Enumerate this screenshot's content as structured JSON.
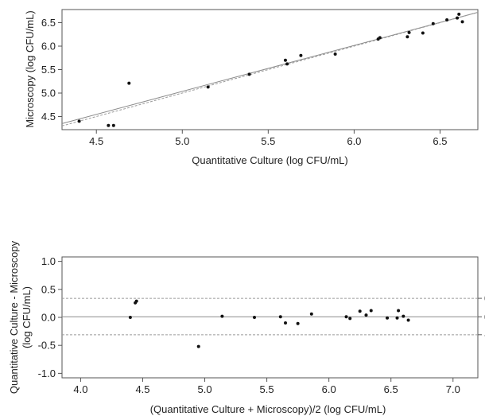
{
  "chart_data": [
    {
      "type": "scatter",
      "xlabel": "Quantitative Culture (log CFU/mL)",
      "ylabel": "Microscopy (log CFU/mL)",
      "xlim": [
        4.3,
        6.72
      ],
      "ylim": [
        4.22,
        6.78
      ],
      "xticks": [
        4.5,
        5.0,
        5.5,
        6.0,
        6.5
      ],
      "xtick_labels": [
        "4.5",
        "5.0",
        "5.5",
        "6.0",
        "6.5"
      ],
      "yticks": [
        4.5,
        5.0,
        5.5,
        6.0,
        6.5
      ],
      "ytick_labels": [
        "4.5",
        "5.0",
        "5.5",
        "6.0",
        "6.5"
      ],
      "grid": false,
      "points": [
        {
          "x": 4.4,
          "y": 4.4
        },
        {
          "x": 4.57,
          "y": 4.31
        },
        {
          "x": 4.6,
          "y": 4.31
        },
        {
          "x": 4.69,
          "y": 5.21
        },
        {
          "x": 5.15,
          "y": 5.13
        },
        {
          "x": 5.39,
          "y": 5.4
        },
        {
          "x": 5.6,
          "y": 5.7
        },
        {
          "x": 5.61,
          "y": 5.62
        },
        {
          "x": 5.69,
          "y": 5.8
        },
        {
          "x": 5.89,
          "y": 5.83
        },
        {
          "x": 6.14,
          "y": 6.15
        },
        {
          "x": 6.15,
          "y": 6.18
        },
        {
          "x": 6.31,
          "y": 6.2
        },
        {
          "x": 6.32,
          "y": 6.29
        },
        {
          "x": 6.4,
          "y": 6.28
        },
        {
          "x": 6.46,
          "y": 6.48
        },
        {
          "x": 6.54,
          "y": 6.56
        },
        {
          "x": 6.6,
          "y": 6.6
        },
        {
          "x": 6.61,
          "y": 6.68
        },
        {
          "x": 6.63,
          "y": 6.52
        }
      ],
      "lines": [
        {
          "style": "solid",
          "color": "#8a8a8a",
          "x": [
            4.3,
            6.72
          ],
          "y": [
            4.35,
            6.72
          ]
        },
        {
          "style": "dashed",
          "color": "#9a9a9a",
          "x": [
            4.3,
            6.72
          ],
          "y": [
            4.3,
            6.72
          ]
        }
      ]
    },
    {
      "type": "scatter",
      "xlabel": "(Quantitative Culture + Microscopy)/2 (log CFU/mL)",
      "ylabel": "Quantitative Culture - Microscopy\n(log CFU/mL)",
      "xlim": [
        3.85,
        7.2
      ],
      "ylim": [
        -1.08,
        1.08
      ],
      "xticks": [
        4.0,
        4.5,
        5.0,
        5.5,
        6.0,
        6.5,
        7.0
      ],
      "xtick_labels": [
        "4.0",
        "4.5",
        "5.0",
        "5.5",
        "6.0",
        "6.5",
        "7.0"
      ],
      "yticks": [
        -1.0,
        -0.5,
        0.0,
        0.5,
        1.0
      ],
      "ytick_labels": [
        "-1.0",
        "-0.5",
        "0.0",
        "0.5",
        "1.0"
      ],
      "grid": false,
      "points": [
        {
          "x": 4.4,
          "y": 0.0
        },
        {
          "x": 4.44,
          "y": 0.26
        },
        {
          "x": 4.45,
          "y": 0.29
        },
        {
          "x": 4.95,
          "y": -0.52
        },
        {
          "x": 5.14,
          "y": 0.02
        },
        {
          "x": 5.4,
          "y": 0.0
        },
        {
          "x": 5.61,
          "y": 0.01
        },
        {
          "x": 5.65,
          "y": -0.1
        },
        {
          "x": 5.75,
          "y": -0.11
        },
        {
          "x": 5.86,
          "y": 0.06
        },
        {
          "x": 6.14,
          "y": 0.01
        },
        {
          "x": 6.17,
          "y": -0.02
        },
        {
          "x": 6.25,
          "y": 0.11
        },
        {
          "x": 6.3,
          "y": 0.04
        },
        {
          "x": 6.34,
          "y": 0.12
        },
        {
          "x": 6.47,
          "y": -0.01
        },
        {
          "x": 6.55,
          "y": -0.01
        },
        {
          "x": 6.56,
          "y": 0.12
        },
        {
          "x": 6.6,
          "y": 0.02
        },
        {
          "x": 6.64,
          "y": -0.05
        }
      ],
      "reference_lines": [
        {
          "y": 0.34,
          "label": "0.34",
          "style": "dashed"
        },
        {
          "y": 0.01,
          "label": "0.01",
          "style": "solid"
        },
        {
          "y": -0.31,
          "label": "-0.31",
          "style": "dashed"
        }
      ]
    }
  ]
}
